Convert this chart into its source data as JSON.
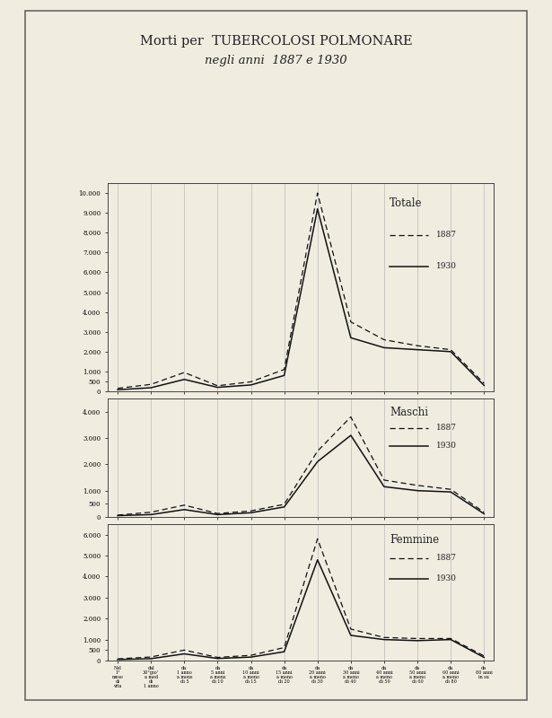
{
  "title_line1": "Morti per  TUBERCOLOSI POLMONARE",
  "title_line2": "negli anni  1887 e 1930",
  "x_labels": [
    "Nel\n1°\nmese\ndi\nvita",
    "dal\n30°gio'\na med\ndi\n1 anno",
    "da\n1 anno\na mens\ndi 5",
    "da\n5 anni\na mens\ndi 10",
    "da\n10 anni\na meno\ndi 15",
    "da\n15 anni\na meno\ndi 20",
    "da\n20 anni\na meno\ndi 30",
    "da\n30 anni\na meno\ndi 40",
    "da\n40 anni\na meno\ndi 50",
    "da\n50 anni\na meno\ndi 60",
    "da\n60 anni\na meno\ndi 80",
    "da\n80 anni\nin su"
  ],
  "panels": [
    {
      "title": "Totale",
      "ylim": [
        0,
        10500
      ],
      "yticks": [
        0,
        500,
        1000,
        2000,
        3000,
        4000,
        5000,
        6000,
        7000,
        8000,
        9000,
        10000
      ],
      "ytick_labels": [
        "0",
        "500",
        "1.000",
        "2.000",
        "3.000",
        "4.000",
        "5.000",
        "6.000",
        "7.000",
        "8.000",
        "9.000",
        "10.000"
      ],
      "data_1887": [
        150,
        350,
        950,
        280,
        480,
        1100,
        10000,
        3500,
        2600,
        2300,
        2100,
        400
      ],
      "data_1930": [
        80,
        180,
        600,
        200,
        320,
        800,
        9200,
        2700,
        2200,
        2100,
        2000,
        300
      ]
    },
    {
      "title": "Maschi",
      "ylim": [
        0,
        4500
      ],
      "yticks": [
        0,
        500,
        1000,
        2000,
        3000,
        4000
      ],
      "ytick_labels": [
        "0",
        "500",
        "1.000",
        "2.000",
        "3.000",
        "4.000"
      ],
      "data_1887": [
        70,
        180,
        450,
        130,
        230,
        480,
        2500,
        3800,
        1400,
        1200,
        1050,
        180
      ],
      "data_1930": [
        50,
        90,
        280,
        90,
        160,
        380,
        2100,
        3100,
        1150,
        1000,
        950,
        120
      ]
    },
    {
      "title": "Femmine",
      "ylim": [
        0,
        6500
      ],
      "yticks": [
        0,
        500,
        1000,
        2000,
        3000,
        4000,
        5000,
        6000
      ],
      "ytick_labels": [
        "0",
        "500",
        "1.000",
        "2.000",
        "3.000",
        "4.000",
        "5.000",
        "6.000"
      ],
      "data_1887": [
        80,
        170,
        500,
        150,
        250,
        620,
        5800,
        1500,
        1100,
        1050,
        1050,
        220
      ],
      "data_1930": [
        50,
        90,
        320,
        100,
        165,
        420,
        4800,
        1200,
        1000,
        950,
        1000,
        150
      ]
    }
  ],
  "bg_color": "#f0ece0",
  "plot_bg": "#f0ece0",
  "line_color": "#111111",
  "grid_color": "#bbbbbb"
}
